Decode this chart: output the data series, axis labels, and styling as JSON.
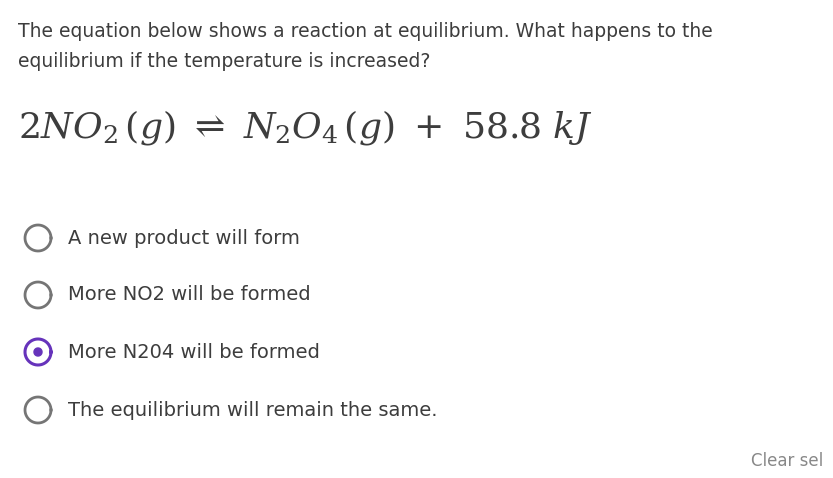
{
  "background_color": "#ffffff",
  "question_line1": "The equation below shows a reaction at equilibrium. What happens to the",
  "question_line2": "equilibrium if the temperature is increased?",
  "options": [
    {
      "text": "A new product will form",
      "selected": false
    },
    {
      "text": "More NO2 will be formed",
      "selected": false
    },
    {
      "text": "More N204 will be formed",
      "selected": true
    },
    {
      "text": "The equilibrium will remain the same.",
      "selected": false
    }
  ],
  "question_fontsize": 13.5,
  "equation_fontsize": 26,
  "option_fontsize": 14,
  "text_color": "#3d3d3d",
  "circle_color_unselected": "#757575",
  "circle_color_selected_outer": "#6633bb",
  "circle_color_selected_inner": "#6633bb",
  "footer_text": "Clear sel",
  "footer_color": "#888888",
  "footer_fontsize": 12,
  "fig_width": 8.33,
  "fig_height": 4.78,
  "dpi": 100
}
